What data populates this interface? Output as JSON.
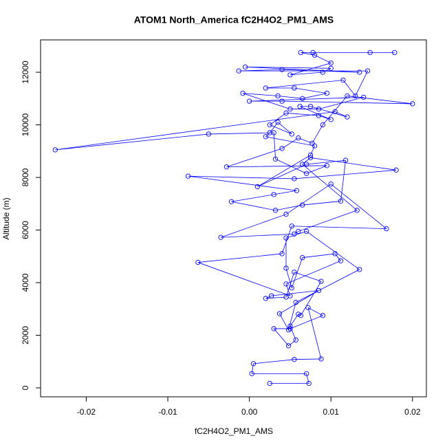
{
  "chart_data": {
    "type": "line",
    "title": "ATOM1 North_America fC2H4O2_PM1_AMS",
    "x_label": "fC2H4O2_PM1_AMS",
    "y_label": "Altitude (m)",
    "xlim": [
      -0.0256,
      0.0217
    ],
    "ylim": [
      -340,
      13230
    ],
    "xticks": [
      -0.02,
      -0.01,
      {
        "value": 0,
        "label": "0.00"
      },
      0.01,
      0.02
    ],
    "yticks": [
      0,
      2000,
      4000,
      6000,
      8000,
      10000,
      12000
    ],
    "x": [
      0.0025,
      0.0073,
      0.007,
      0.0003,
      0.0005,
      0.0055,
      0.0088,
      0.0072,
      0.009,
      0.005,
      0.003,
      0.0048,
      0.0057,
      0.005,
      0.006,
      0.0063,
      0.0088,
      0.0055,
      0.0045,
      0.002,
      0.0027,
      0.0085,
      0.0037,
      0.0048,
      0.0057,
      0.0135,
      0.007,
      0.0045,
      0.0045,
      0.0052,
      0.0065,
      0.0105,
      0.0112,
      0.0045,
      0.005,
      -0.0063,
      0.004,
      0.0052,
      0.0168,
      0.01,
      0.0045,
      -0.0035,
      0.0055,
      0.006,
      0.0132,
      0.0065,
      0.0075,
      0.018,
      0.0055,
      -0.0075,
      0.0058,
      0.003,
      -0.0022,
      0.0032,
      0.0065,
      0.0112,
      0.0118,
      0.007,
      0.001,
      0.0075,
      0.008,
      0.002,
      0.0025,
      0.0035,
      0.0052,
      0.0025,
      0.0045,
      0.0085,
      0.01,
      0.0062,
      0.0075,
      0.012,
      0.0105,
      -0.0238,
      -0.005,
      0.003,
      0.0032,
      0.007,
      0.0095,
      -0.0028,
      0.004,
      0.006,
      0.0077,
      0.009,
      0.012,
      0.02,
      0.004,
      0.0,
      0.014,
      0.0085,
      0.005,
      -0.0008,
      0.0035,
      0.0065,
      0.0095,
      0.0055,
      0.002,
      0.0115,
      0.013,
      0.0145,
      -0.0013,
      0.004,
      0.0135,
      -0.0005,
      0.01,
      0.009,
      0.005,
      0.01,
      0.008,
      0.0063,
      0.0078,
      0.0148,
      0.0178
    ],
    "series": [
      {
        "color": "#0000ff",
        "values": [
          170,
          170,
          540,
          540,
          920,
          1080,
          1100,
          3050,
          2750,
          2250,
          2250,
          1600,
          1820,
          2350,
          2800,
          2750,
          4050,
          4400,
          3450,
          3400,
          3500,
          3700,
          2820,
          2200,
          3250,
          4500,
          5950,
          5700,
          4550,
          3800,
          4950,
          5100,
          4830,
          3950,
          3500,
          4770,
          5100,
          6150,
          6050,
          7750,
          6600,
          5720,
          5850,
          5950,
          6750,
          8500,
          8750,
          8280,
          7950,
          8050,
          7500,
          7350,
          7080,
          6750,
          6950,
          7100,
          8650,
          8500,
          7650,
          8850,
          9200,
          9550,
          9700,
          10100,
          9650,
          10000,
          10450,
          10350,
          10200,
          10700,
          10700,
          10300,
          10500,
          9050,
          9650,
          9700,
          8700,
          8150,
          8450,
          8400,
          9100,
          9500,
          9300,
          10000,
          11100,
          10800,
          10900,
          10900,
          11050,
          10600,
          10600,
          11200,
          11100,
          11000,
          11200,
          11400,
          11400,
          11700,
          11100,
          12050,
          12050,
          12100,
          12000,
          12200,
          12150,
          12000,
          11900,
          12350,
          12650,
          12750,
          12750,
          12750,
          12750
        ]
      }
    ]
  }
}
